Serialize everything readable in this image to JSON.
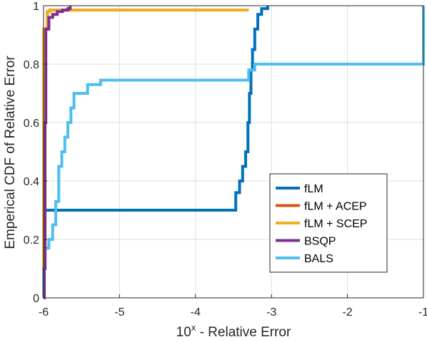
{
  "chart_data": {
    "type": "line",
    "step": true,
    "xlabel": "10",
    "xlabel_sup": "x",
    "xlabel_rest": " - Relative Error",
    "ylabel": "Emperical CDF of Relative Error",
    "xlim": [
      -6,
      -1
    ],
    "ylim": [
      0,
      1
    ],
    "xticks": [
      "-6",
      "-5",
      "-4",
      "-3",
      "-2",
      "-1"
    ],
    "yticks": [
      "0",
      "0.2",
      "0.4",
      "0.6",
      "0.8",
      "1"
    ],
    "grid": true,
    "legend_position": "bottom-right",
    "series": [
      {
        "name": "fLM",
        "color": "#0072BD",
        "points": [
          [
            -6,
            0
          ],
          [
            -6,
            0.3
          ],
          [
            -3.52,
            0.3
          ],
          [
            -3.47,
            0.36
          ],
          [
            -3.42,
            0.4
          ],
          [
            -3.38,
            0.45
          ],
          [
            -3.34,
            0.5
          ],
          [
            -3.31,
            0.6
          ],
          [
            -3.29,
            0.7
          ],
          [
            -3.27,
            0.78
          ],
          [
            -3.25,
            0.85
          ],
          [
            -3.22,
            0.92
          ],
          [
            -3.18,
            0.97
          ],
          [
            -3.13,
            0.99
          ],
          [
            -3.05,
            1.0
          ]
        ]
      },
      {
        "name": "fLM + ACEP",
        "color": "#D95319",
        "points": [
          [
            -6,
            0
          ],
          [
            -6,
            0.92
          ],
          [
            -5.97,
            0.92
          ],
          [
            -5.95,
            0.98
          ],
          [
            -5.92,
            0.985
          ],
          [
            -3.3,
            0.985
          ]
        ]
      },
      {
        "name": "fLM + SCEP",
        "color": "#EDB120",
        "points": [
          [
            -6,
            0
          ],
          [
            -6,
            0.92
          ],
          [
            -5.97,
            0.92
          ],
          [
            -5.95,
            0.98
          ],
          [
            -5.92,
            0.985
          ],
          [
            -3.3,
            0.985
          ]
        ]
      },
      {
        "name": "BSQP",
        "color": "#7E2F8E",
        "points": [
          [
            -6,
            0
          ],
          [
            -5.99,
            0.1
          ],
          [
            -5.98,
            0.6
          ],
          [
            -5.97,
            0.92
          ],
          [
            -5.93,
            0.96
          ],
          [
            -5.88,
            0.97
          ],
          [
            -5.82,
            0.98
          ],
          [
            -5.75,
            0.985
          ],
          [
            -5.68,
            0.99
          ],
          [
            -5.65,
            1.0
          ]
        ]
      },
      {
        "name": "BALS",
        "color": "#4DBEEE",
        "points": [
          [
            -6,
            0
          ],
          [
            -6,
            0.1
          ],
          [
            -5.98,
            0.17
          ],
          [
            -5.93,
            0.2
          ],
          [
            -5.88,
            0.25
          ],
          [
            -5.84,
            0.33
          ],
          [
            -5.8,
            0.45
          ],
          [
            -5.76,
            0.5
          ],
          [
            -5.72,
            0.55
          ],
          [
            -5.68,
            0.6
          ],
          [
            -5.64,
            0.65
          ],
          [
            -5.6,
            0.7
          ],
          [
            -5.45,
            0.7
          ],
          [
            -5.42,
            0.73
          ],
          [
            -5.25,
            0.745
          ],
          [
            -3.35,
            0.745
          ],
          [
            -3.3,
            0.78
          ],
          [
            -3.22,
            0.8
          ],
          [
            -1,
            0.8
          ],
          [
            -1,
            1.0
          ]
        ]
      }
    ]
  }
}
